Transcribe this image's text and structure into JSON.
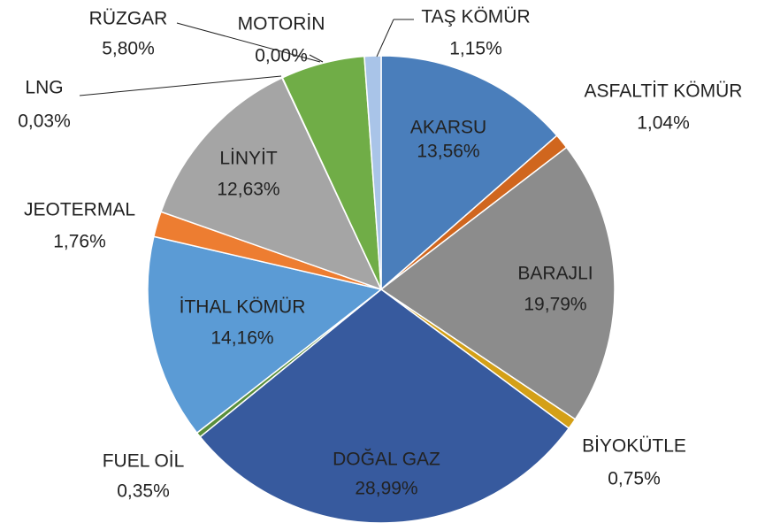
{
  "chart_data": {
    "type": "pie",
    "categories": [
      "AKARSU",
      "ASFALTİT KÖMÜR",
      "BARAJLI",
      "BİYOKÜTLE",
      "DOĞAL GAZ",
      "FUEL OİL",
      "İTHAL KÖMÜR",
      "JEOTERMAL",
      "LİNYİT",
      "LNG",
      "MOTORİN",
      "RÜZGAR",
      "TAŞ KÖMÜR"
    ],
    "values": [
      13.56,
      1.04,
      19.79,
      0.75,
      28.99,
      0.35,
      14.16,
      1.76,
      12.63,
      0.03,
      0.0,
      5.8,
      1.15
    ],
    "value_labels": [
      "13,56%",
      "1,04%",
      "19,79%",
      "0,75%",
      "28,99%",
      "0,35%",
      "14,16%",
      "1,76%",
      "12,63%",
      "0,03%",
      "0,00%",
      "5,80%",
      "1,15%"
    ],
    "colors": [
      "#4a7ebb",
      "#d0661e",
      "#8c8c8c",
      "#d4a017",
      "#375a9e",
      "#5a8f3c",
      "#5b9bd5",
      "#ed7d31",
      "#a5a5a5",
      "#264478",
      "#9e480e",
      "#70ad47",
      "#a9c4e8"
    ]
  }
}
